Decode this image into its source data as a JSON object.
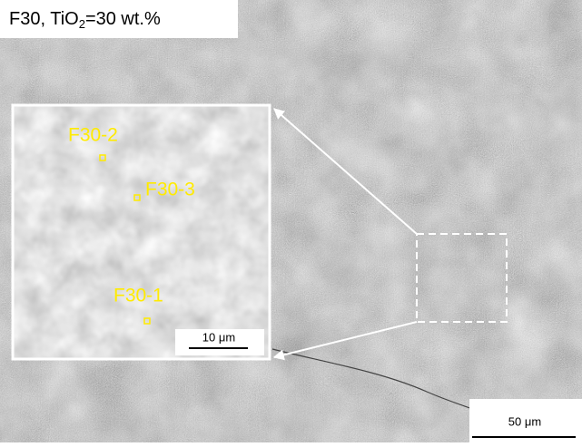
{
  "label": {
    "main": "F30, TiO",
    "sub": "2",
    "rest": "=30 wt.%"
  },
  "inset": {
    "points": [
      {
        "label": "F30-2"
      },
      {
        "label": "F30-3"
      },
      {
        "label": "F30-1"
      }
    ],
    "scale_bar": "10 μm"
  },
  "scale_bar": "50 μm"
}
